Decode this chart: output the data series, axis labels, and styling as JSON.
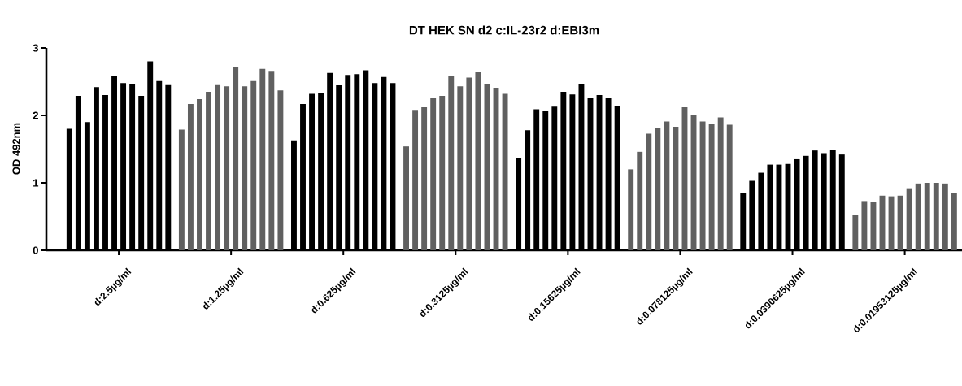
{
  "chart_data": {
    "type": "bar",
    "title": "DT HEK SN d2 c:IL-23r2 d:EBI3m",
    "ylabel": "OD 492nm",
    "categories": [
      "d:2.5µg/ml",
      "d:1.25µg/ml",
      "d:0.625µg/ml",
      "d:0.3125µg/ml",
      "d:0.15625µg/ml",
      "d:0.078125µg/ml",
      "d:0.0390625µg/ml",
      "d:0.01953125µg/ml"
    ],
    "ylim": [
      0,
      3
    ],
    "yticks": [
      0,
      1,
      2,
      3
    ],
    "grid": false,
    "series": [
      {
        "colors": [
          "#000000",
          "#606060",
          "#000000",
          "#606060",
          "#000000",
          "#606060",
          "#000000",
          "#606060"
        ],
        "values": [
          1.8,
          1.79,
          1.63,
          1.54,
          1.37,
          1.2,
          0.85,
          0.53
        ]
      },
      {
        "colors": [
          "#000000",
          "#606060",
          "#000000",
          "#606060",
          "#000000",
          "#606060",
          "#000000",
          "#606060"
        ],
        "values": [
          2.29,
          2.17,
          2.17,
          2.08,
          1.78,
          1.46,
          1.03,
          0.73
        ]
      },
      {
        "colors": [
          "#000000",
          "#606060",
          "#000000",
          "#606060",
          "#000000",
          "#606060",
          "#000000",
          "#606060"
        ],
        "values": [
          1.9,
          2.24,
          2.32,
          2.12,
          2.09,
          1.73,
          1.15,
          0.72
        ]
      },
      {
        "colors": [
          "#000000",
          "#606060",
          "#000000",
          "#606060",
          "#000000",
          "#606060",
          "#000000",
          "#606060"
        ],
        "values": [
          2.42,
          2.35,
          2.33,
          2.26,
          2.07,
          1.81,
          1.27,
          0.81
        ]
      },
      {
        "colors": [
          "#000000",
          "#606060",
          "#000000",
          "#606060",
          "#000000",
          "#606060",
          "#000000",
          "#606060"
        ],
        "values": [
          2.3,
          2.46,
          2.63,
          2.29,
          2.13,
          1.91,
          1.27,
          0.8
        ]
      },
      {
        "colors": [
          "#000000",
          "#606060",
          "#000000",
          "#606060",
          "#000000",
          "#606060",
          "#000000",
          "#606060"
        ],
        "values": [
          2.59,
          2.43,
          2.45,
          2.59,
          2.35,
          1.83,
          1.28,
          0.81
        ]
      },
      {
        "colors": [
          "#000000",
          "#606060",
          "#000000",
          "#606060",
          "#000000",
          "#606060",
          "#000000",
          "#606060"
        ],
        "values": [
          2.48,
          2.72,
          2.6,
          2.43,
          2.31,
          2.12,
          1.35,
          0.92
        ]
      },
      {
        "colors": [
          "#000000",
          "#606060",
          "#000000",
          "#606060",
          "#000000",
          "#606060",
          "#000000",
          "#606060"
        ],
        "values": [
          2.47,
          2.43,
          2.61,
          2.56,
          2.47,
          2.01,
          1.4,
          0.99
        ]
      },
      {
        "colors": [
          "#000000",
          "#606060",
          "#000000",
          "#606060",
          "#000000",
          "#606060",
          "#000000",
          "#606060"
        ],
        "values": [
          2.29,
          2.51,
          2.67,
          2.64,
          2.26,
          1.91,
          1.48,
          1.0
        ]
      },
      {
        "colors": [
          "#000000",
          "#606060",
          "#000000",
          "#606060",
          "#000000",
          "#606060",
          "#000000",
          "#606060"
        ],
        "values": [
          2.8,
          2.69,
          2.48,
          2.47,
          2.3,
          1.88,
          1.44,
          1.0
        ]
      },
      {
        "colors": [
          "#000000",
          "#606060",
          "#000000",
          "#606060",
          "#000000",
          "#606060",
          "#000000",
          "#606060"
        ],
        "values": [
          2.51,
          2.66,
          2.57,
          2.41,
          2.26,
          1.97,
          1.49,
          0.99
        ]
      },
      {
        "colors": [
          "#000000",
          "#606060",
          "#000000",
          "#606060",
          "#000000",
          "#606060",
          "#000000",
          "#606060"
        ],
        "values": [
          2.46,
          2.37,
          2.48,
          2.32,
          2.14,
          1.86,
          1.42,
          0.85
        ]
      }
    ]
  }
}
